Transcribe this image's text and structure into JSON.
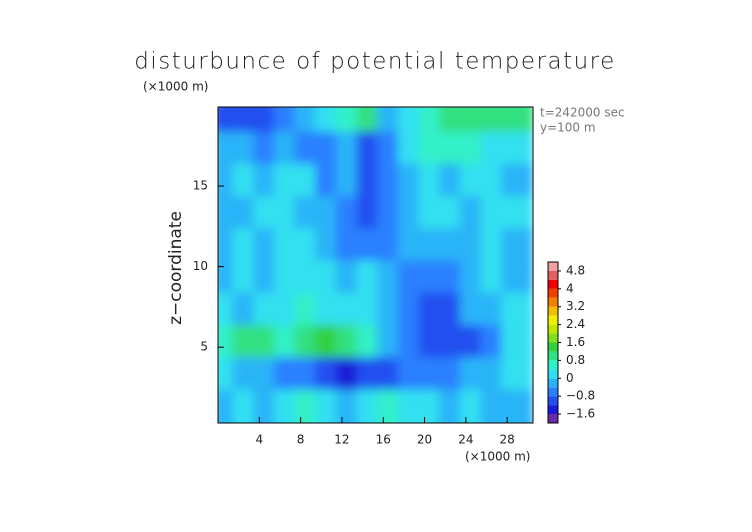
{
  "chart_data": {
    "type": "contour",
    "title": "disturbunce of potential temperature",
    "y_unit": "(×1000 m)",
    "x_unit": "(×1000 m)",
    "ylabel": "z−coordinate",
    "annotations": [
      "t=242000 sec",
      "y=100 m"
    ],
    "xlim": [
      0,
      30.5
    ],
    "ylim": [
      0.3,
      19.9
    ],
    "xticks": [
      4,
      8,
      12,
      16,
      20,
      24,
      28
    ],
    "yticks": [
      5,
      10,
      15
    ],
    "x": [
      1,
      3,
      5,
      7,
      9,
      11,
      13,
      15,
      17,
      19,
      21,
      23,
      25,
      27,
      29
    ],
    "y": [
      19,
      17,
      15,
      13,
      11,
      9,
      7,
      5,
      3,
      1
    ],
    "z": [
      [
        -1.2,
        -1.2,
        -1.0,
        -0.8,
        -0.2,
        0.2,
        0.6,
        0.8,
        -0.2,
        0.2,
        0.6,
        0.8,
        1.0,
        1.0,
        0.8
      ],
      [
        -0.4,
        -0.2,
        -0.6,
        -0.4,
        -0.6,
        -0.8,
        -0.2,
        -1.0,
        -0.6,
        0.0,
        0.4,
        0.6,
        0.4,
        0.2,
        0.0
      ],
      [
        -0.2,
        0.0,
        -0.2,
        0.2,
        0.0,
        -0.6,
        -0.4,
        -1.0,
        -0.8,
        -0.2,
        0.0,
        -0.2,
        0.2,
        0.0,
        -0.2
      ],
      [
        -0.2,
        -0.4,
        0.0,
        0.2,
        -0.2,
        -0.4,
        -0.8,
        -1.0,
        -0.6,
        -0.4,
        0.0,
        0.2,
        -0.2,
        0.0,
        0.0
      ],
      [
        -0.4,
        0.0,
        -0.2,
        0.2,
        0.0,
        -0.2,
        -0.6,
        -0.8,
        -0.6,
        -0.4,
        -0.2,
        -0.2,
        -0.4,
        0.0,
        -0.2
      ],
      [
        -0.2,
        0.0,
        -0.4,
        0.2,
        0.0,
        0.0,
        -0.2,
        0.2,
        -0.2,
        -0.6,
        -0.8,
        -0.6,
        -0.2,
        0.0,
        -0.2
      ],
      [
        0.0,
        -0.4,
        0.2,
        0.2,
        0.4,
        0.0,
        0.2,
        0.0,
        -0.4,
        -0.8,
        -1.2,
        -1.0,
        -0.4,
        -0.2,
        0.0
      ],
      [
        0.4,
        0.8,
        1.0,
        0.6,
        0.8,
        1.2,
        0.8,
        0.4,
        -0.2,
        -0.8,
        -1.2,
        -1.2,
        -1.2,
        -0.6,
        0.2
      ],
      [
        0.0,
        -0.2,
        -0.4,
        -0.8,
        -0.6,
        -1.2,
        -1.4,
        -1.2,
        -1.0,
        -0.6,
        -0.6,
        -0.8,
        -0.4,
        -0.2,
        0.0
      ],
      [
        -0.4,
        0.0,
        -0.2,
        0.0,
        0.4,
        0.0,
        -0.2,
        0.0,
        0.4,
        0.2,
        0.0,
        -0.4,
        0.0,
        -0.2,
        -0.4
      ]
    ],
    "levels": [
      -2.0,
      -1.6,
      -1.2,
      -0.8,
      -0.4,
      0,
      0.4,
      0.8,
      1.2,
      1.6,
      2.0,
      2.4,
      2.8,
      3.2,
      3.6,
      4.0,
      4.4,
      4.8,
      5.2
    ],
    "colors": [
      "#6a2aa8",
      "#1a1ad8",
      "#2050f0",
      "#2a80ff",
      "#2ab4f8",
      "#30e0f0",
      "#30f0c8",
      "#30e080",
      "#30d040",
      "#80e020",
      "#c0e800",
      "#f0f000",
      "#f0c000",
      "#f08000",
      "#f04000",
      "#f00000",
      "#e06060",
      "#f0a0a0"
    ],
    "colorbar_ticks": [
      {
        "value": -1.6,
        "label": "−1.6"
      },
      {
        "value": -0.8,
        "label": "−0.8"
      },
      0,
      {
        "value": 0.8,
        "label": "0.8"
      },
      {
        "value": 1.6,
        "label": "1.6"
      },
      {
        "value": 2.4,
        "label": "2.4"
      },
      {
        "value": 3.2,
        "label": "3.2"
      },
      4,
      {
        "value": 4.8,
        "label": "4.8"
      }
    ]
  }
}
